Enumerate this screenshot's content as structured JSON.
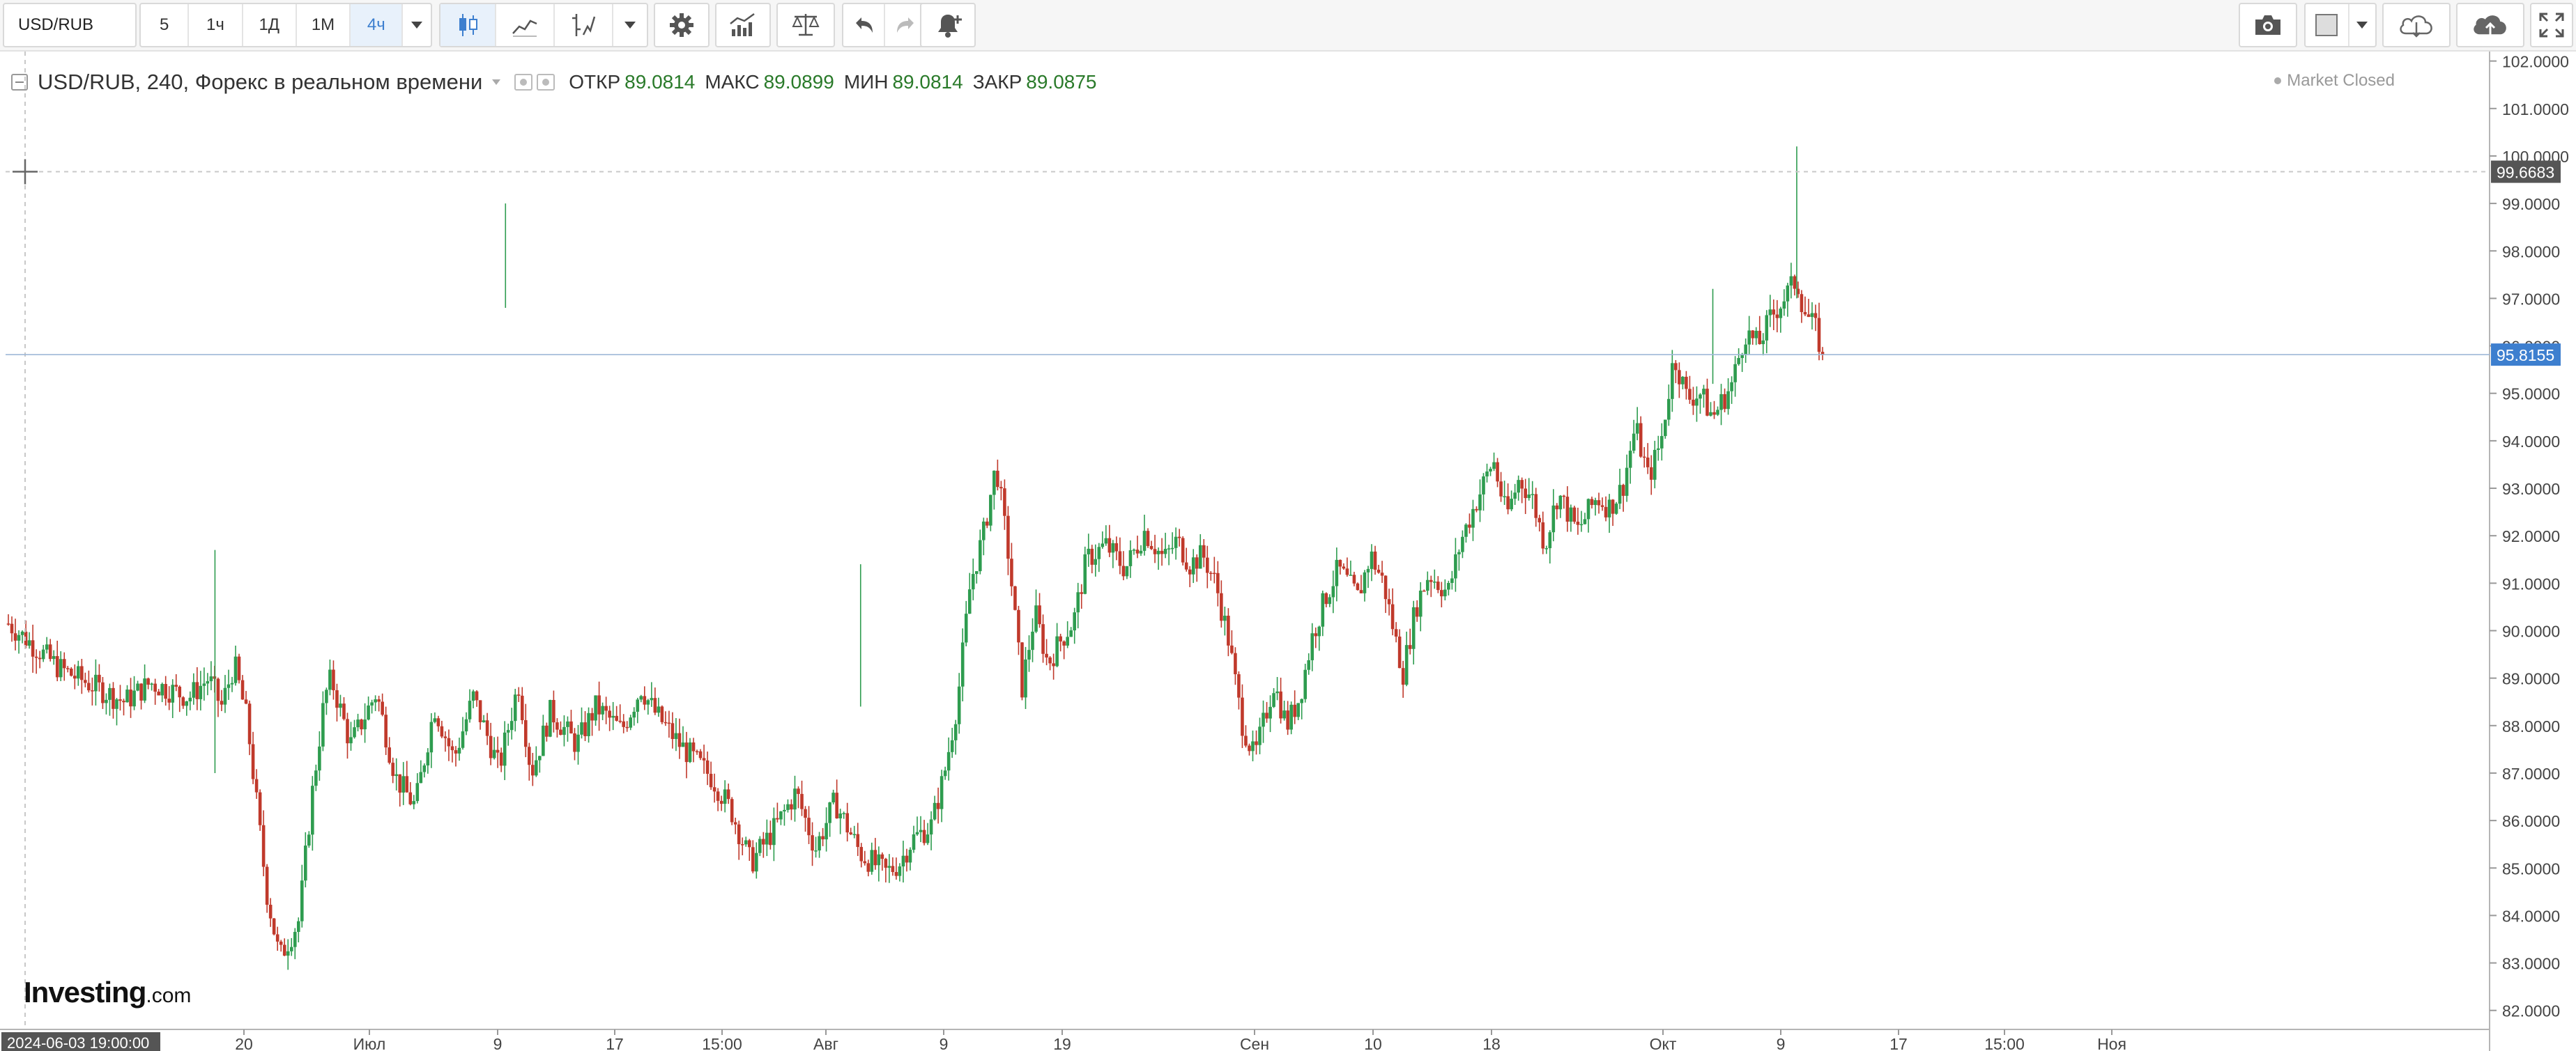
{
  "toolbar": {
    "symbol": "USD/RUB",
    "intervals": [
      "5",
      "1ч",
      "1Д",
      "1М",
      "4ч"
    ],
    "active_interval": "4ч"
  },
  "legend": {
    "title": "USD/RUB, 240, Форекс в реальном времени",
    "open_label": "ОТКР",
    "open_value": "89.0814",
    "high_label": "МАКС",
    "high_value": "89.0899",
    "low_label": "МИН",
    "low_value": "89.0814",
    "close_label": "ЗАКР",
    "close_value": "89.0875"
  },
  "status": {
    "market": "Market Closed"
  },
  "branding": {
    "name": "Investing",
    "suffix": ".com"
  },
  "chart_data": {
    "type": "candlestick",
    "symbol": "USD/RUB",
    "interval": "240",
    "y_axis": {
      "ylim": [
        81.6,
        102.2
      ],
      "ticks": [
        "82.0000",
        "83.0000",
        "84.0000",
        "85.0000",
        "86.0000",
        "87.0000",
        "88.0000",
        "89.0000",
        "90.0000",
        "91.0000",
        "92.0000",
        "93.0000",
        "94.0000",
        "95.0000",
        "96.0000",
        "97.0000",
        "98.0000",
        "99.0000",
        "100.0000",
        "101.0000",
        "102.0000"
      ]
    },
    "x_axis": {
      "ticks": [
        "20",
        "Июл",
        "9",
        "17",
        "15:00",
        "Авг",
        "9",
        "19",
        "Сен",
        "10",
        "18",
        "Окт",
        "9",
        "17",
        "15:00",
        "Ноя"
      ],
      "crosshair_time": "2024-06-03 19:00:00"
    },
    "crosshair_price": "99.6683",
    "last_price": "95.8155",
    "colors": {
      "up": "#2e9c4f",
      "down": "#c0392b",
      "last_price_label": "#3d7fcf",
      "crosshair_label": "#555555"
    },
    "path": [
      [
        0,
        90.15
      ],
      [
        0.04,
        89.2
      ],
      [
        0.09,
        88.5
      ],
      [
        0.11,
        88.9
      ],
      [
        0.14,
        88.6
      ],
      [
        0.155,
        89.0
      ],
      [
        0.165,
        88.4
      ],
      [
        0.175,
        89.3
      ],
      [
        0.185,
        88.1
      ],
      [
        0.2,
        84.5
      ],
      [
        0.21,
        83.1
      ],
      [
        0.225,
        83.9
      ],
      [
        0.235,
        86.5
      ],
      [
        0.245,
        88.6
      ],
      [
        0.25,
        89.0
      ],
      [
        0.265,
        87.6
      ],
      [
        0.285,
        88.7
      ],
      [
        0.3,
        86.9
      ],
      [
        0.315,
        86.3
      ],
      [
        0.33,
        88.4
      ],
      [
        0.345,
        87.3
      ],
      [
        0.36,
        88.6
      ],
      [
        0.38,
        87.1
      ],
      [
        0.395,
        88.9
      ],
      [
        0.405,
        87.0
      ],
      [
        0.42,
        88.3
      ],
      [
        0.44,
        87.6
      ],
      [
        0.455,
        88.4
      ],
      [
        0.475,
        87.9
      ],
      [
        0.49,
        88.8
      ],
      [
        0.5,
        88.3
      ],
      [
        0.52,
        87.6
      ],
      [
        0.545,
        86.9
      ],
      [
        0.56,
        86.2
      ],
      [
        0.575,
        85.1
      ],
      [
        0.595,
        85.9
      ],
      [
        0.61,
        86.6
      ],
      [
        0.625,
        85.4
      ],
      [
        0.64,
        86.4
      ],
      [
        0.66,
        85.3
      ],
      [
        0.68,
        84.9
      ],
      [
        0.69,
        85.1
      ],
      [
        0.7,
        85.6
      ],
      [
        0.715,
        85.9
      ],
      [
        0.725,
        87.0
      ],
      [
        0.735,
        88.5
      ],
      [
        0.745,
        91.0
      ],
      [
        0.755,
        92.0
      ],
      [
        0.765,
        93.5
      ],
      [
        0.775,
        91.5
      ],
      [
        0.785,
        88.8
      ],
      [
        0.795,
        90.4
      ],
      [
        0.805,
        89.3
      ],
      [
        0.815,
        89.8
      ],
      [
        0.825,
        90.2
      ],
      [
        0.835,
        91.5
      ],
      [
        0.85,
        91.8
      ],
      [
        0.865,
        91.3
      ],
      [
        0.88,
        92.1
      ],
      [
        0.895,
        91.5
      ],
      [
        0.905,
        91.9
      ],
      [
        0.915,
        91.4
      ],
      [
        0.925,
        91.6
      ],
      [
        0.935,
        91.0
      ],
      [
        0.945,
        89.8
      ],
      [
        0.955,
        88.1
      ],
      [
        0.965,
        87.3
      ],
      [
        0.98,
        88.9
      ],
      [
        0.99,
        88.0
      ],
      [
        1.0,
        88.6
      ],
      [
        1.01,
        89.9
      ],
      [
        1.02,
        90.7
      ],
      [
        1.03,
        91.3
      ],
      [
        1.045,
        90.7
      ],
      [
        1.055,
        91.6
      ],
      [
        1.065,
        91.0
      ],
      [
        1.08,
        89.1
      ],
      [
        1.09,
        90.5
      ],
      [
        1.1,
        91.2
      ],
      [
        1.115,
        90.8
      ],
      [
        1.125,
        91.9
      ],
      [
        1.135,
        92.6
      ],
      [
        1.15,
        93.6
      ],
      [
        1.16,
        92.4
      ],
      [
        1.17,
        93.2
      ],
      [
        1.18,
        92.8
      ],
      [
        1.19,
        91.8
      ],
      [
        1.2,
        92.9
      ],
      [
        1.215,
        92.1
      ],
      [
        1.23,
        92.8
      ],
      [
        1.24,
        92.6
      ],
      [
        1.25,
        93.0
      ],
      [
        1.26,
        94.3
      ],
      [
        1.27,
        93.2
      ],
      [
        1.28,
        94.0
      ],
      [
        1.29,
        95.8
      ],
      [
        1.3,
        94.9
      ],
      [
        1.31,
        95.0
      ],
      [
        1.32,
        94.5
      ],
      [
        1.335,
        95.2
      ],
      [
        1.345,
        96.3
      ],
      [
        1.355,
        96.0
      ],
      [
        1.365,
        96.6
      ],
      [
        1.375,
        97.0
      ],
      [
        1.385,
        97.4
      ],
      [
        1.39,
        96.8
      ],
      [
        1.4,
        96.3
      ],
      [
        1.405,
        95.82
      ]
    ]
  }
}
